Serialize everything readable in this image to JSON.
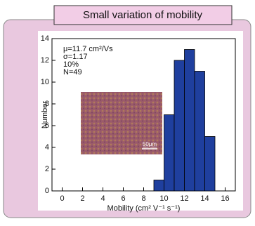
{
  "chart_data": {
    "type": "histogram",
    "title": "Small variation of mobility",
    "xlabel": "Mobility (cm² V⁻¹ s⁻¹)",
    "ylabel": "Number",
    "annotations": [
      "μ=11.7 cm²/Vs",
      "σ=1.17",
      "10%",
      "N=49"
    ],
    "inset_label": "50μm",
    "bins": [
      9,
      10,
      11,
      12,
      13,
      14,
      15
    ],
    "values": [
      1,
      7,
      12,
      13,
      11,
      5
    ],
    "color": "#1f3f9e",
    "xlim": [
      -1,
      17
    ],
    "xticks": [
      0,
      2,
      4,
      6,
      8,
      10,
      12,
      14,
      16
    ],
    "ylim": [
      0,
      14
    ],
    "yticks": [
      0,
      2,
      4,
      6,
      8,
      10,
      12,
      14
    ]
  }
}
